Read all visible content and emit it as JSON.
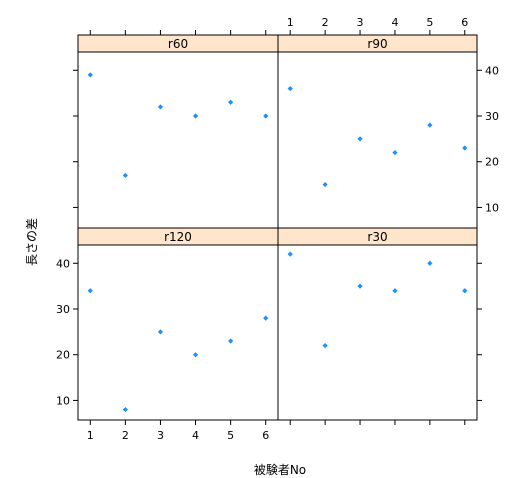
{
  "chart_data": {
    "type": "scatter",
    "layout": "lattice 2x2",
    "xlabel": "被験者No",
    "ylabel": "長さの差",
    "x_ticks": [
      1,
      2,
      3,
      4,
      5,
      6
    ],
    "y_ticks": [
      10,
      20,
      30,
      40
    ],
    "xlim": [
      0.65,
      6.35
    ],
    "ylim": [
      5.5,
      44
    ],
    "panels": [
      {
        "label": "r60",
        "x": [
          1,
          2,
          3,
          4,
          5,
          6
        ],
        "y": [
          39,
          17,
          32,
          30,
          33,
          30
        ]
      },
      {
        "label": "r90",
        "x": [
          1,
          2,
          3,
          4,
          5,
          6
        ],
        "y": [
          36,
          15,
          25,
          22,
          28,
          23
        ]
      },
      {
        "label": "r120",
        "x": [
          1,
          2,
          3,
          4,
          5,
          6
        ],
        "y": [
          34,
          8,
          25,
          20,
          23,
          28
        ]
      },
      {
        "label": "r30",
        "x": [
          1,
          2,
          3,
          4,
          5,
          6
        ],
        "y": [
          42,
          22,
          35,
          34,
          40,
          34
        ]
      }
    ],
    "point_color": "#1e90ff",
    "strip_color": "#ffe5cc"
  }
}
